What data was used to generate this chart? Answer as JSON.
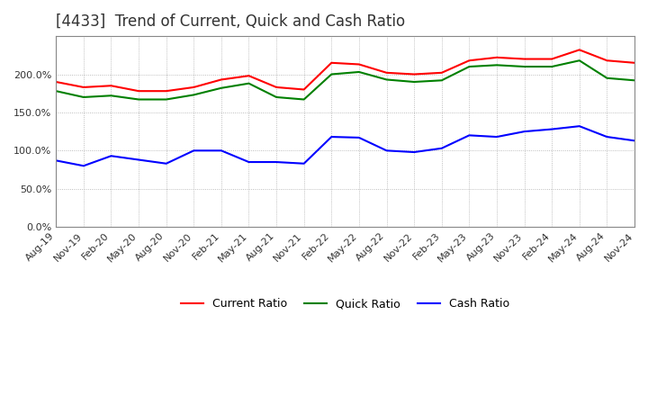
{
  "title": "[4433]  Trend of Current, Quick and Cash Ratio",
  "x_labels": [
    "Aug-19",
    "Nov-19",
    "Feb-20",
    "May-20",
    "Aug-20",
    "Nov-20",
    "Feb-21",
    "May-21",
    "Aug-21",
    "Nov-21",
    "Feb-22",
    "May-22",
    "Aug-22",
    "Nov-22",
    "Feb-23",
    "May-23",
    "Aug-23",
    "Nov-23",
    "Feb-24",
    "May-24",
    "Aug-24",
    "Nov-24"
  ],
  "current_ratio": [
    190,
    183,
    185,
    178,
    178,
    183,
    193,
    198,
    183,
    180,
    215,
    213,
    202,
    200,
    202,
    218,
    222,
    220,
    220,
    232,
    218,
    215
  ],
  "quick_ratio": [
    178,
    170,
    172,
    167,
    167,
    173,
    182,
    188,
    170,
    167,
    200,
    203,
    193,
    190,
    192,
    210,
    212,
    210,
    210,
    218,
    195,
    192
  ],
  "cash_ratio": [
    87,
    80,
    93,
    88,
    83,
    100,
    100,
    85,
    85,
    83,
    118,
    117,
    100,
    98,
    103,
    120,
    118,
    125,
    128,
    132,
    118,
    113
  ],
  "ylim_max": 250,
  "ytick_values": [
    0,
    50,
    100,
    150,
    200
  ],
  "current_color": "#ff0000",
  "quick_color": "#008000",
  "cash_color": "#0000ff",
  "background_color": "#ffffff",
  "grid_color": "#aaaaaa",
  "border_color": "#888888",
  "title_fontsize": 12,
  "tick_fontsize": 8,
  "legend_fontsize": 9
}
